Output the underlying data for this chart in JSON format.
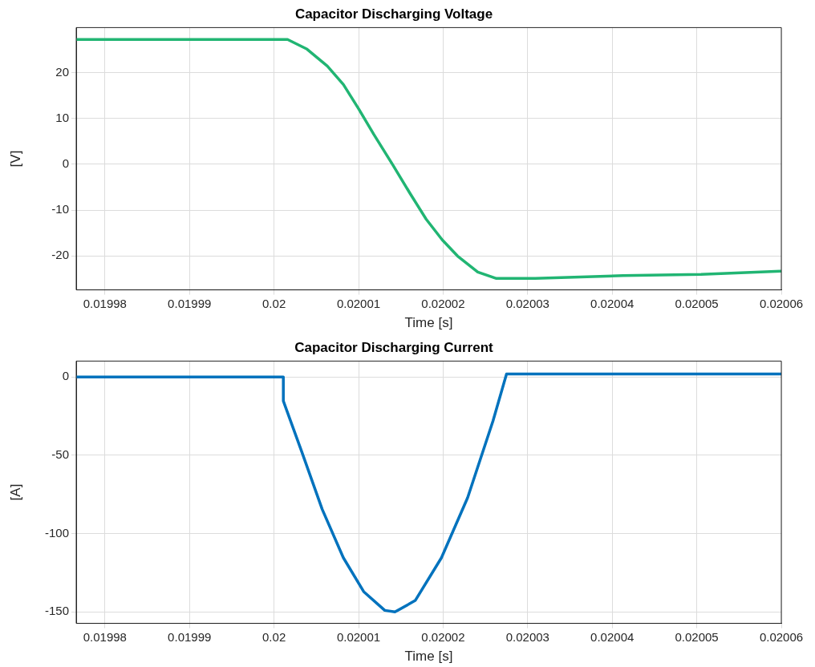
{
  "chart_data": [
    {
      "type": "line",
      "title": "Capacitor Discharging Voltage",
      "xlabel": "Time [s]",
      "ylabel": "[V]",
      "xlim": [
        0.0199766,
        0.02006
      ],
      "xticks": [
        0.01998,
        0.01999,
        0.02,
        0.02001,
        0.02002,
        0.02003,
        0.02004,
        0.02005,
        0.02006
      ],
      "ylim": [
        -27.4,
        29.8
      ],
      "yticks": [
        -20,
        -10,
        0,
        10,
        20
      ],
      "grid": true,
      "legend": false,
      "series": [
        {
          "color": "#21b573",
          "x": [
            0.0199766,
            0.0200016,
            0.0200039,
            0.0200063,
            0.0200082,
            0.02001,
            0.0200118,
            0.020014,
            0.0200161,
            0.020018,
            0.0200199,
            0.0200217,
            0.0200241,
            0.0200263,
            0.0200309,
            0.0200413,
            0.0200505,
            0.0200599
          ],
          "values": [
            27.2,
            27.2,
            25.1,
            21.4,
            17.4,
            12.1,
            6.5,
            0,
            -6.4,
            -12,
            -16.5,
            -20,
            -23.5,
            -24.9,
            -24.9,
            -24.3,
            -24,
            -23.3
          ]
        }
      ]
    },
    {
      "type": "line",
      "title": "Capacitor Discharging Current",
      "xlabel": "Time [s]",
      "ylabel": "[A]",
      "xlim": [
        0.0199766,
        0.02006
      ],
      "xticks": [
        0.01998,
        0.01999,
        0.02,
        0.02001,
        0.02002,
        0.02003,
        0.02004,
        0.02005,
        0.02006
      ],
      "ylim": [
        -157.3,
        10.2
      ],
      "yticks": [
        -150,
        -100,
        -50,
        0
      ],
      "grid": true,
      "legend": false,
      "series": [
        {
          "color": "#0072bd",
          "x": [
            0.0199766,
            0.0200011,
            0.0200011,
            0.0200033,
            0.0200057,
            0.0200082,
            0.0200106,
            0.0200131,
            0.0200143,
            0.0200167,
            0.0200198,
            0.0200229,
            0.0200259,
            0.0200275,
            0.02006
          ],
          "values": [
            0,
            0,
            -15.3,
            -48,
            -84.5,
            -115.4,
            -137,
            -149,
            -150,
            -142.7,
            -115.4,
            -77,
            -28,
            2,
            2
          ]
        }
      ]
    }
  ]
}
